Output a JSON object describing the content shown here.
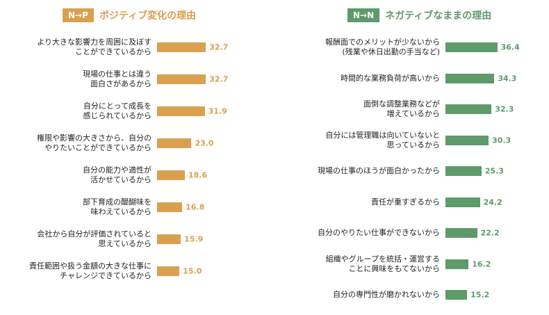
{
  "colors": {
    "positive": "#d9a04f",
    "negative": "#5e9a6a"
  },
  "chart_data": [
    {
      "type": "bar",
      "orientation": "horizontal",
      "tag": "N→P",
      "title": "ポジティブ変化の理由",
      "categories": [
        "より大きな影響力を周囲に及ぼす\nことができているから",
        "現場の仕事とは違う\n面白さがあるから",
        "自分にとって成長を\n感じられているから",
        "権限や影響の大きさから、自分の\nやりたいことができているから",
        "自分の能力や適性が\n活かせているから",
        "部下育成の醍醐味を\n味わえているから",
        "会社から自分が評価されていると\n思えているから",
        "責任範囲や扱う金額の大きな仕事に\nチャレンジできているから"
      ],
      "values": [
        32.7,
        32.7,
        31.9,
        23.0,
        18.6,
        16.8,
        15.9,
        15.0
      ],
      "value_labels": [
        "32.7",
        "32.7",
        "31.9",
        "23.0",
        "18.6",
        "16.8",
        "15.9",
        "15.0"
      ]
    },
    {
      "type": "bar",
      "orientation": "horizontal",
      "tag": "N→N",
      "title": "ネガティブなままの理由",
      "categories": [
        "報酬面でのメリットが少ないから\n(残業や休日出勤の手当など)",
        "時間的な業務負荷が高いから",
        "面倒な調整業務などが\n増えているから",
        "自分には管理職は向いていないと\n思っているから",
        "現場の仕事のほうが面白かったから",
        "責任が重すぎるから",
        "自分のやりたい仕事ができないから",
        "組織やグループを統括・運営する\nことに興味をもてないから",
        "自分の専門性が磨かれないから"
      ],
      "values": [
        36.4,
        34.3,
        32.3,
        30.3,
        25.3,
        24.2,
        22.2,
        16.2,
        15.2
      ],
      "value_labels": [
        "36.4",
        "34.3",
        "32.3",
        "30.3",
        "25.3",
        "24.2",
        "22.2",
        "16.2",
        "15.2"
      ]
    }
  ]
}
